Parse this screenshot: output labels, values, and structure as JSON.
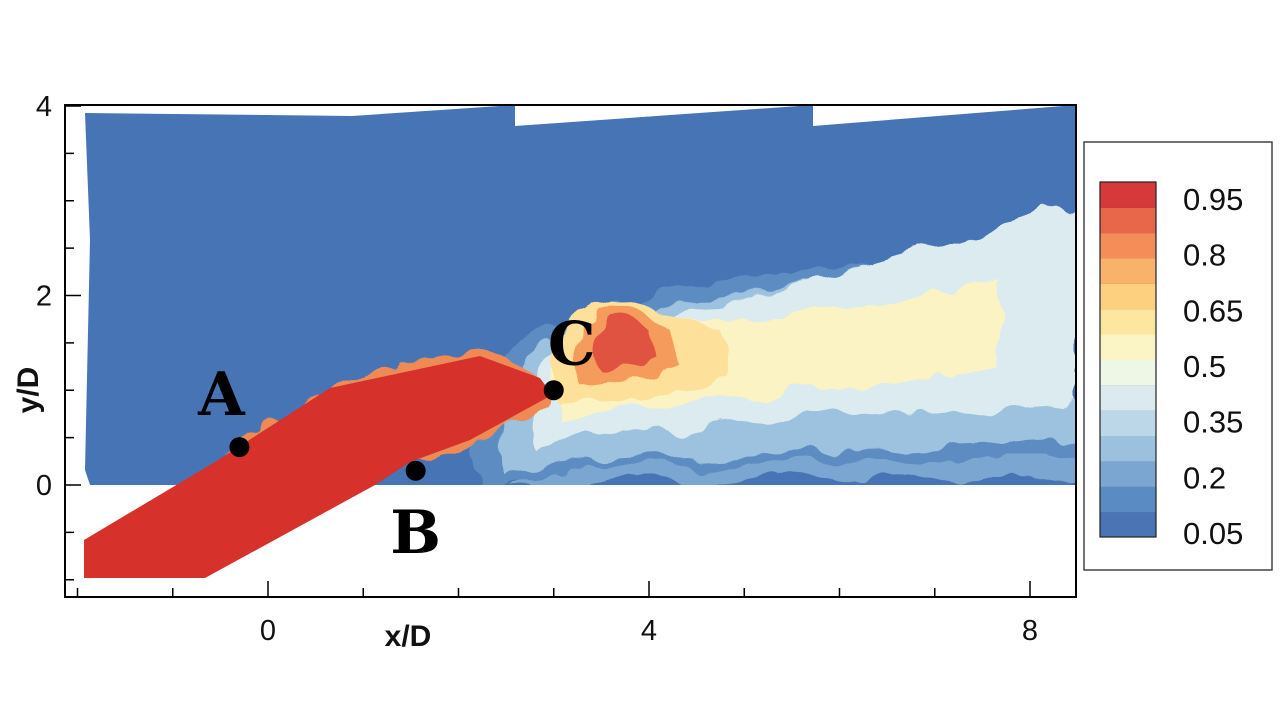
{
  "chart_data": {
    "type": "heatmap",
    "title": "",
    "xlabel": "x/D",
    "ylabel": "y/D",
    "xlim": [
      -2.2,
      8.5
    ],
    "ylim": [
      -1.2,
      4
    ],
    "x_ticks": [
      0,
      4,
      8
    ],
    "y_ticks": [
      0,
      2,
      4
    ],
    "colorbar": {
      "placement": "right",
      "range": [
        0.05,
        1.0
      ],
      "tick_labels": [
        "0.95",
        "0.8",
        "0.65",
        "0.5",
        "0.35",
        "0.2",
        "0.05"
      ],
      "colors": [
        "#4a74b4",
        "#5a8bc2",
        "#7aa6d1",
        "#9cc1de",
        "#bcd8e8",
        "#daeaef",
        "#eef6e6",
        "#fbf4c4",
        "#fde7a0",
        "#fcd07e",
        "#f9b26a",
        "#f48d58",
        "#e8674a",
        "#d6393a"
      ]
    },
    "points": [
      {
        "label": "A",
        "x": -0.3,
        "y": 0.4
      },
      {
        "label": "B",
        "x": 1.55,
        "y": 0.15
      },
      {
        "label": "C",
        "x": 3.0,
        "y": 1.0
      }
    ]
  }
}
